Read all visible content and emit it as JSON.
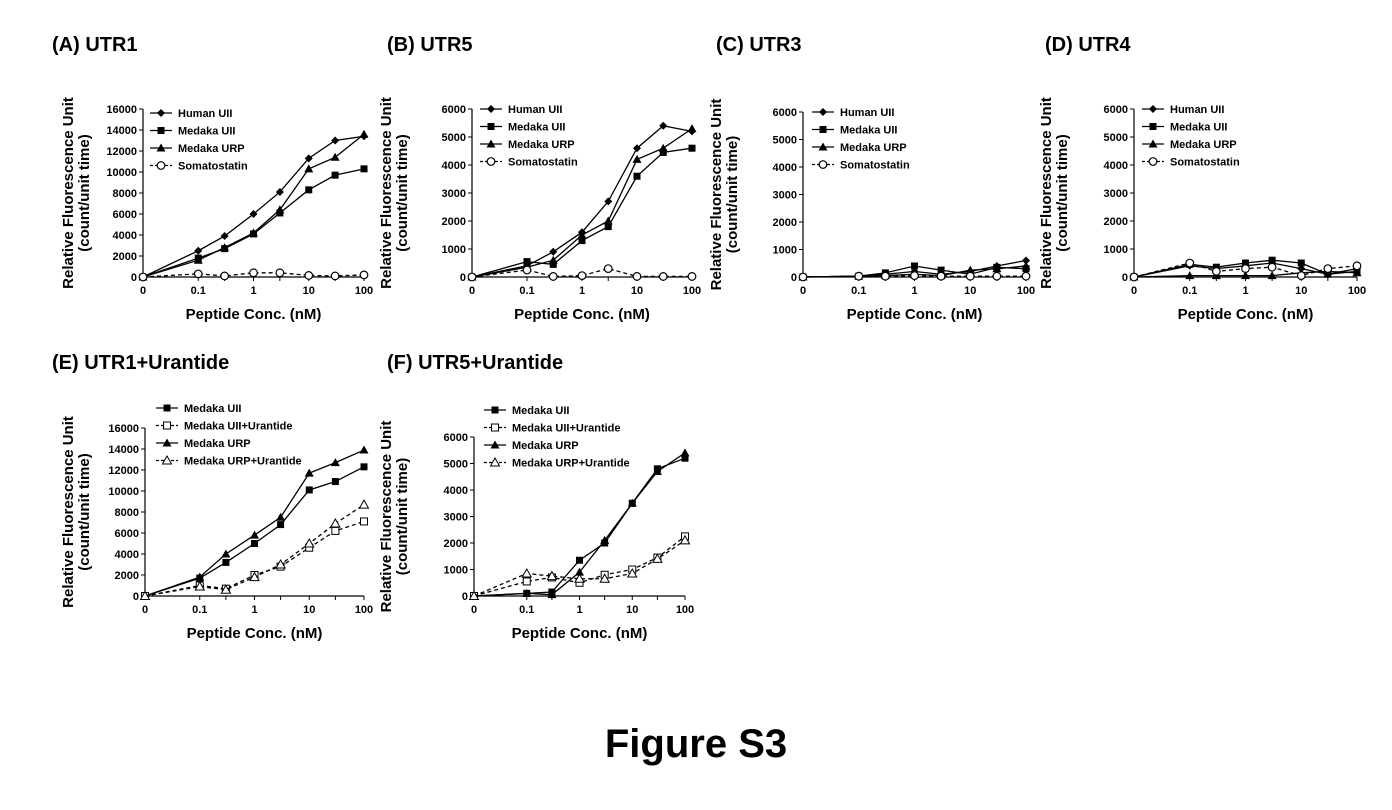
{
  "figure_title": "Figure S3",
  "chart_data": [
    {
      "type": "line",
      "panel_label": "(A) UTR1",
      "xlabel": "Peptide Conc. (nM)",
      "ylabel": [
        "Relative Fluorescence Unit",
        "(count/unit time)"
      ],
      "x": [
        0,
        0.1,
        0.3,
        1,
        3,
        10,
        30,
        100
      ],
      "xticks": [
        "0",
        "0.1",
        "1",
        "10",
        "100"
      ],
      "ylim": [
        0,
        16000
      ],
      "yticks": [
        0,
        2000,
        4000,
        6000,
        8000,
        10000,
        12000,
        14000,
        16000
      ],
      "legend": "top-left",
      "series": [
        {
          "name": "Human UII",
          "marker": "diamond",
          "dash": false,
          "values": [
            0,
            2500,
            3900,
            6000,
            8100,
            11300,
            13000,
            13400
          ]
        },
        {
          "name": "Medaka UII",
          "marker": "square",
          "dash": false,
          "values": [
            0,
            1800,
            2700,
            4100,
            6100,
            8300,
            9700,
            10300
          ]
        },
        {
          "name": "Medaka URP",
          "marker": "triangle",
          "dash": false,
          "values": [
            0,
            1600,
            2800,
            4200,
            6400,
            10300,
            11400,
            13600
          ]
        },
        {
          "name": "Somatostatin",
          "marker": "circle-open",
          "dash": true,
          "values": [
            0,
            300,
            100,
            400,
            400,
            150,
            100,
            200
          ]
        }
      ]
    },
    {
      "type": "line",
      "panel_label": "(B) UTR5",
      "xlabel": "Peptide Conc. (nM)",
      "ylabel": [
        "Relative Fluorescence Unit",
        "(count/unit time)"
      ],
      "x": [
        0,
        0.1,
        0.3,
        1,
        3,
        10,
        30,
        100
      ],
      "xticks": [
        "0",
        "0.1",
        "1",
        "10",
        "100"
      ],
      "ylim": [
        0,
        6000
      ],
      "yticks": [
        0,
        1000,
        2000,
        3000,
        4000,
        5000,
        6000
      ],
      "legend": "top-left",
      "series": [
        {
          "name": "Human UII",
          "marker": "diamond",
          "dash": false,
          "values": [
            0,
            400,
            900,
            1600,
            2700,
            4600,
            5400,
            5200
          ]
        },
        {
          "name": "Medaka UII",
          "marker": "square",
          "dash": false,
          "values": [
            0,
            550,
            450,
            1300,
            1800,
            3600,
            4450,
            4600
          ]
        },
        {
          "name": "Medaka URP",
          "marker": "triangle",
          "dash": false,
          "values": [
            0,
            350,
            600,
            1500,
            2000,
            4200,
            4600,
            5300
          ]
        },
        {
          "name": "Somatostatin",
          "marker": "circle-open",
          "dash": true,
          "values": [
            0,
            250,
            20,
            50,
            300,
            20,
            20,
            20
          ]
        }
      ]
    },
    {
      "type": "line",
      "panel_label": "(C) UTR3",
      "xlabel": "Peptide Conc. (nM)",
      "ylabel": [
        "Relative Fluorescence Unit",
        "(count/unit time)"
      ],
      "x": [
        0,
        0.1,
        0.3,
        1,
        3,
        10,
        30,
        100
      ],
      "xticks": [
        "0",
        "0.1",
        "1",
        "10",
        "100"
      ],
      "ylim": [
        0,
        6000
      ],
      "yticks": [
        0,
        1000,
        2000,
        3000,
        4000,
        5000,
        6000
      ],
      "legend": "top-left",
      "series": [
        {
          "name": "Human UII",
          "marker": "diamond",
          "dash": false,
          "values": [
            0,
            30,
            100,
            200,
            100,
            200,
            400,
            600
          ]
        },
        {
          "name": "Medaka UII",
          "marker": "square",
          "dash": false,
          "values": [
            0,
            30,
            150,
            400,
            250,
            100,
            350,
            300
          ]
        },
        {
          "name": "Medaka URP",
          "marker": "triangle",
          "dash": false,
          "values": [
            0,
            30,
            50,
            100,
            50,
            250,
            300,
            400
          ]
        },
        {
          "name": "Somatostatin",
          "marker": "circle-open",
          "dash": true,
          "values": [
            0,
            30,
            30,
            50,
            30,
            30,
            30,
            30
          ]
        }
      ]
    },
    {
      "type": "line",
      "panel_label": "(D) UTR4",
      "xlabel": "Peptide Conc. (nM)",
      "ylabel": [
        "Relative Fluorescence Unit",
        "(count/unit time)"
      ],
      "x": [
        0,
        0.1,
        0.3,
        1,
        3,
        10,
        30,
        100
      ],
      "xticks": [
        "0",
        "0.1",
        "1",
        "10",
        "100"
      ],
      "ylim": [
        0,
        6000
      ],
      "yticks": [
        0,
        1000,
        2000,
        3000,
        4000,
        5000,
        6000
      ],
      "legend": "top-left",
      "series": [
        {
          "name": "Human UII",
          "marker": "diamond",
          "dash": false,
          "values": [
            0,
            400,
            300,
            400,
            500,
            300,
            100,
            300
          ]
        },
        {
          "name": "Medaka UII",
          "marker": "square",
          "dash": false,
          "values": [
            0,
            450,
            350,
            500,
            600,
            500,
            100,
            200
          ]
        },
        {
          "name": "Medaka URP",
          "marker": "triangle",
          "dash": false,
          "values": [
            0,
            50,
            50,
            50,
            50,
            150,
            200,
            150
          ]
        },
        {
          "name": "Somatostatin",
          "marker": "circle-open",
          "dash": true,
          "values": [
            0,
            500,
            200,
            300,
            350,
            50,
            300,
            400
          ]
        }
      ]
    },
    {
      "type": "line",
      "panel_label": "(E) UTR1+Urantide",
      "xlabel": "Peptide Conc. (nM)",
      "ylabel": [
        "Relative Fluorescence Unit",
        "(count/unit time)"
      ],
      "x": [
        0,
        0.1,
        0.3,
        1,
        3,
        10,
        30,
        100
      ],
      "xticks": [
        "0",
        "0.1",
        "1",
        "10",
        "100"
      ],
      "ylim": [
        0,
        16000
      ],
      "yticks": [
        0,
        2000,
        4000,
        6000,
        8000,
        10000,
        12000,
        14000,
        16000
      ],
      "legend": "top-left",
      "series": [
        {
          "name": "Medaka UII",
          "marker": "square",
          "dash": false,
          "values": [
            0,
            1700,
            3200,
            5000,
            6800,
            10100,
            10900,
            12300
          ]
        },
        {
          "name": "Medaka UII+Urantide",
          "marker": "square-open",
          "dash": true,
          "values": [
            0,
            1000,
            700,
            2000,
            2800,
            4600,
            6200,
            7100
          ]
        },
        {
          "name": "Medaka URP",
          "marker": "triangle",
          "dash": false,
          "values": [
            0,
            1800,
            4000,
            5800,
            7500,
            11700,
            12700,
            13900
          ]
        },
        {
          "name": "Medaka URP+Urantide",
          "marker": "triangle-open",
          "dash": true,
          "values": [
            0,
            900,
            600,
            1800,
            3000,
            5000,
            6900,
            8700
          ]
        }
      ]
    },
    {
      "type": "line",
      "panel_label": "(F) UTR5+Urantide",
      "xlabel": "Peptide Conc. (nM)",
      "ylabel": [
        "Relative Fluorescence Unit",
        "(count/unit time)"
      ],
      "x": [
        0,
        0.1,
        0.3,
        1,
        3,
        10,
        30,
        100
      ],
      "xticks": [
        "0",
        "0.1",
        "1",
        "10",
        "100"
      ],
      "ylim": [
        0,
        6000
      ],
      "yticks": [
        0,
        1000,
        2000,
        3000,
        4000,
        5000,
        6000
      ],
      "legend": "top-left",
      "series": [
        {
          "name": "Medaka UII",
          "marker": "square",
          "dash": false,
          "values": [
            0,
            100,
            150,
            1350,
            2000,
            3500,
            4800,
            5200
          ]
        },
        {
          "name": "Medaka UII+Urantide",
          "marker": "square-open",
          "dash": true,
          "values": [
            0,
            550,
            700,
            500,
            800,
            1000,
            1450,
            2250
          ]
        },
        {
          "name": "Medaka URP",
          "marker": "triangle",
          "dash": false,
          "values": [
            0,
            100,
            50,
            900,
            2100,
            3500,
            4700,
            5400
          ]
        },
        {
          "name": "Medaka URP+Urantide",
          "marker": "triangle-open",
          "dash": true,
          "values": [
            0,
            850,
            750,
            650,
            650,
            850,
            1400,
            2100
          ]
        }
      ]
    }
  ]
}
